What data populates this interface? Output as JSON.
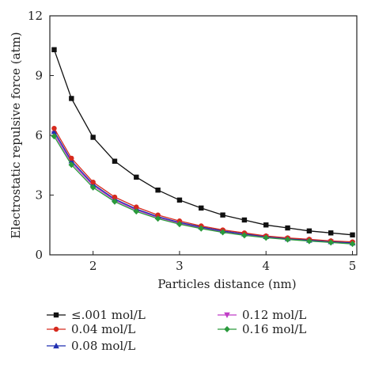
{
  "chart_data": {
    "type": "scatter",
    "title": "",
    "xlabel": "Particles distance (nm)",
    "ylabel": "Electrostatic repulsive force (atm)",
    "xlim": [
      1.5,
      5.05
    ],
    "ylim": [
      0,
      12
    ],
    "xticks": [
      "2",
      "3",
      "4",
      "5"
    ],
    "yticks": [
      "0",
      "3",
      "6",
      "9",
      "12"
    ],
    "grid": false,
    "legend_position": "bottom",
    "series": [
      {
        "name": "≤.001 mol/L",
        "color": "#111111",
        "marker": "square",
        "x": [
          1.55,
          1.75,
          2.0,
          2.25,
          2.5,
          2.75,
          3.0,
          3.25,
          3.5,
          3.75,
          4.0,
          4.25,
          4.5,
          4.75,
          5.0
        ],
        "y": [
          10.3,
          7.85,
          5.9,
          4.7,
          3.9,
          3.25,
          2.75,
          2.35,
          2.0,
          1.75,
          1.5,
          1.35,
          1.2,
          1.1,
          1.0
        ]
      },
      {
        "name": "0.04 mol/L",
        "color": "#d62a1e",
        "marker": "circle",
        "x": [
          1.55,
          1.75,
          2.0,
          2.25,
          2.5,
          2.75,
          3.0,
          3.25,
          3.5,
          3.75,
          4.0,
          4.25,
          4.5,
          4.75,
          5.0
        ],
        "y": [
          6.35,
          4.85,
          3.65,
          2.9,
          2.4,
          2.0,
          1.7,
          1.45,
          1.25,
          1.1,
          0.95,
          0.85,
          0.78,
          0.7,
          0.65
        ]
      },
      {
        "name": "0.08 mol/L",
        "color": "#1f2fb0",
        "marker": "triangle-up",
        "x": [
          1.55,
          1.75,
          2.0,
          2.25,
          2.5,
          2.75,
          3.0,
          3.25,
          3.5,
          3.75,
          4.0,
          4.25,
          4.5,
          4.75,
          5.0
        ],
        "y": [
          6.2,
          4.72,
          3.55,
          2.8,
          2.3,
          1.92,
          1.63,
          1.4,
          1.2,
          1.05,
          0.92,
          0.82,
          0.74,
          0.67,
          0.6
        ]
      },
      {
        "name": "0.12 mol/L",
        "color": "#c03cc6",
        "marker": "triangle-down",
        "x": [
          1.55,
          1.75,
          2.0,
          2.25,
          2.5,
          2.75,
          3.0,
          3.25,
          3.5,
          3.75,
          4.0,
          4.25,
          4.5,
          4.75,
          5.0
        ],
        "y": [
          6.08,
          4.63,
          3.48,
          2.74,
          2.25,
          1.88,
          1.59,
          1.36,
          1.17,
          1.02,
          0.9,
          0.8,
          0.72,
          0.65,
          0.58
        ]
      },
      {
        "name": "0.16 mol/L",
        "color": "#2a9a3c",
        "marker": "diamond",
        "x": [
          1.55,
          1.75,
          2.0,
          2.25,
          2.5,
          2.75,
          3.0,
          3.25,
          3.5,
          3.75,
          4.0,
          4.25,
          4.5,
          4.75,
          5.0
        ],
        "y": [
          5.95,
          4.52,
          3.38,
          2.67,
          2.18,
          1.82,
          1.54,
          1.32,
          1.13,
          0.98,
          0.86,
          0.77,
          0.69,
          0.62,
          0.55
        ]
      }
    ]
  }
}
